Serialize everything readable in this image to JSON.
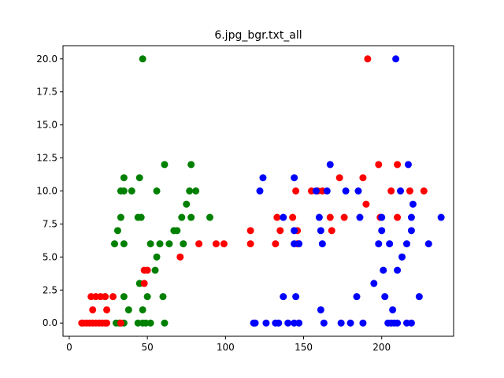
{
  "chart_data": {
    "type": "scatter",
    "title": "6.jpg_bgr.txt_all",
    "xlabel": "",
    "ylabel": "",
    "xlim": [
      -4,
      246
    ],
    "ylim": [
      -1,
      21
    ],
    "xticks": [
      0,
      50,
      100,
      150,
      200
    ],
    "xtick_labels": [
      "0",
      "50",
      "100",
      "150",
      "200"
    ],
    "yticks": [
      0.0,
      2.5,
      5.0,
      7.5,
      10.0,
      12.5,
      15.0,
      17.5,
      20.0
    ],
    "ytick_labels": [
      "0.0",
      "2.5",
      "5.0",
      "7.5",
      "10.0",
      "12.5",
      "15.0",
      "17.5",
      "20.0"
    ],
    "grid": false,
    "series": [
      {
        "color": "#008000",
        "points": [
          [
            47,
            20
          ],
          [
            30,
            0
          ],
          [
            32,
            0
          ],
          [
            35,
            0
          ],
          [
            44,
            0
          ],
          [
            47,
            0
          ],
          [
            49,
            0
          ],
          [
            52,
            0
          ],
          [
            61,
            0
          ],
          [
            38,
            1
          ],
          [
            47,
            1
          ],
          [
            23,
            2
          ],
          [
            35,
            2
          ],
          [
            50,
            2
          ],
          [
            60,
            2
          ],
          [
            45,
            3
          ],
          [
            55,
            4
          ],
          [
            56,
            5
          ],
          [
            29,
            6
          ],
          [
            35,
            6
          ],
          [
            52,
            6
          ],
          [
            58,
            6
          ],
          [
            64,
            6
          ],
          [
            73,
            6
          ],
          [
            31,
            7
          ],
          [
            67,
            7
          ],
          [
            69,
            7
          ],
          [
            33,
            8
          ],
          [
            44,
            8
          ],
          [
            46,
            8
          ],
          [
            72,
            8
          ],
          [
            78,
            8
          ],
          [
            90,
            8
          ],
          [
            75,
            9
          ],
          [
            33,
            10
          ],
          [
            35,
            10
          ],
          [
            40,
            10
          ],
          [
            56,
            10
          ],
          [
            77,
            10
          ],
          [
            81,
            10
          ],
          [
            35,
            11
          ],
          [
            45,
            11
          ],
          [
            61,
            12
          ],
          [
            78,
            12
          ]
        ]
      },
      {
        "color": "#ff0000",
        "points": [
          [
            8,
            0
          ],
          [
            9,
            0
          ],
          [
            11,
            0
          ],
          [
            13,
            0
          ],
          [
            15,
            0
          ],
          [
            17,
            0
          ],
          [
            19,
            0
          ],
          [
            21,
            0
          ],
          [
            23,
            0
          ],
          [
            24,
            0
          ],
          [
            33,
            0
          ],
          [
            15,
            1
          ],
          [
            24,
            1
          ],
          [
            14,
            2
          ],
          [
            17,
            2
          ],
          [
            20,
            2
          ],
          [
            23,
            2
          ],
          [
            28,
            2
          ],
          [
            48,
            3
          ],
          [
            48,
            4
          ],
          [
            50,
            4
          ],
          [
            71,
            5
          ],
          [
            83,
            6
          ],
          [
            94,
            6
          ],
          [
            99,
            6
          ],
          [
            116,
            6
          ],
          [
            132,
            6
          ],
          [
            146,
            6
          ],
          [
            116,
            7
          ],
          [
            135,
            7
          ],
          [
            146,
            7
          ],
          [
            168,
            7
          ],
          [
            133,
            8
          ],
          [
            143,
            8
          ],
          [
            167,
            8
          ],
          [
            176,
            8
          ],
          [
            199,
            8
          ],
          [
            210,
            8
          ],
          [
            190,
            9
          ],
          [
            145,
            10
          ],
          [
            155,
            10
          ],
          [
            159,
            10
          ],
          [
            162,
            10
          ],
          [
            206,
            10
          ],
          [
            218,
            10
          ],
          [
            227,
            10
          ],
          [
            173,
            11
          ],
          [
            188,
            11
          ],
          [
            198,
            12
          ],
          [
            210,
            12
          ],
          [
            191,
            20
          ]
        ]
      },
      {
        "color": "#0000ff",
        "points": [
          [
            209,
            20
          ],
          [
            118,
            0
          ],
          [
            119,
            0
          ],
          [
            126,
            0
          ],
          [
            132,
            0
          ],
          [
            134,
            0
          ],
          [
            140,
            0
          ],
          [
            144,
            0
          ],
          [
            147,
            0
          ],
          [
            163,
            0
          ],
          [
            174,
            0
          ],
          [
            180,
            0
          ],
          [
            188,
            0
          ],
          [
            204,
            0
          ],
          [
            206,
            0
          ],
          [
            208,
            0
          ],
          [
            210,
            0
          ],
          [
            216,
            0
          ],
          [
            219,
            0
          ],
          [
            161,
            1
          ],
          [
            207,
            1
          ],
          [
            137,
            2
          ],
          [
            145,
            2
          ],
          [
            184,
            2
          ],
          [
            202,
            2
          ],
          [
            224,
            2
          ],
          [
            195,
            3
          ],
          [
            201,
            4
          ],
          [
            210,
            4
          ],
          [
            213,
            5
          ],
          [
            144,
            6
          ],
          [
            147,
            6
          ],
          [
            162,
            6
          ],
          [
            198,
            6
          ],
          [
            205,
            6
          ],
          [
            216,
            6
          ],
          [
            230,
            6
          ],
          [
            144,
            7
          ],
          [
            161,
            7
          ],
          [
            200,
            7
          ],
          [
            219,
            7
          ],
          [
            137,
            8
          ],
          [
            160,
            8
          ],
          [
            186,
            8
          ],
          [
            200,
            8
          ],
          [
            219,
            8
          ],
          [
            238,
            8
          ],
          [
            220,
            9
          ],
          [
            122,
            10
          ],
          [
            158,
            10
          ],
          [
            165,
            10
          ],
          [
            177,
            10
          ],
          [
            185,
            10
          ],
          [
            212,
            10
          ],
          [
            124,
            11
          ],
          [
            144,
            11
          ],
          [
            167,
            12
          ],
          [
            217,
            12
          ]
        ]
      }
    ]
  }
}
